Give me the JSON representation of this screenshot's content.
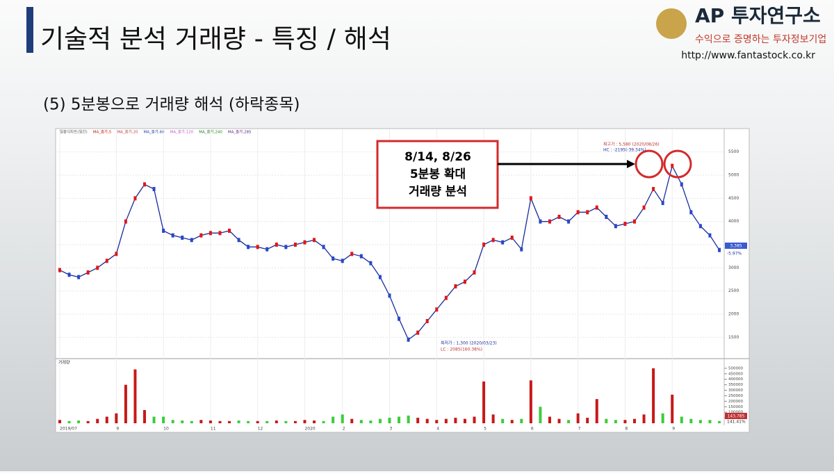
{
  "header": {
    "title": "기술적 분석 거래량 - 특징 / 해석",
    "logo": "AP 투자연구소",
    "slogan": "수익으로 증명하는 투자정보기업",
    "url": "http://www.fantastock.co.kr"
  },
  "subtitle": "(5) 5분봉으로 거래량 해석 (하락종목)",
  "callout": {
    "lines": [
      "8/14, 8/26",
      "5분봉 확대",
      "거래량 분석"
    ]
  },
  "chart_data": {
    "type": "line",
    "legend": [
      "일봉식차트(일간)",
      "MA_종가,5",
      "MA_종가,20",
      "MA_종가,60",
      "MA_종가,120",
      "MA_종가,240",
      "MA_종가,285"
    ],
    "legend_colors": [
      "#555555",
      "#d01010",
      "#c04040",
      "#2040a0",
      "#c060c0",
      "#208020",
      "#602080"
    ],
    "categories": [
      "2019/07",
      null,
      null,
      null,
      null,
      null,
      "9",
      null,
      null,
      null,
      null,
      "10",
      null,
      null,
      null,
      null,
      "11",
      null,
      null,
      null,
      null,
      "12",
      null,
      null,
      null,
      null,
      "2020",
      null,
      null,
      null,
      "2",
      null,
      null,
      null,
      null,
      "3",
      null,
      null,
      null,
      null,
      "4",
      null,
      null,
      null,
      null,
      "5",
      null,
      null,
      null,
      null,
      "6",
      null,
      null,
      null,
      null,
      "7",
      null,
      null,
      null,
      null,
      "8",
      null,
      null,
      null,
      null,
      "9",
      null,
      null,
      null,
      null,
      null
    ],
    "series": [
      {
        "color": "#1a2a9a",
        "values": [
          2950,
          2850,
          2800,
          2900,
          3000,
          3150,
          3300,
          4000,
          4500,
          4800,
          4700,
          3800,
          3700,
          3650,
          3600,
          3700,
          3750,
          3750,
          3800,
          3600,
          3450,
          3450,
          3400,
          3500,
          3450,
          3500,
          3550,
          3600,
          3450,
          3200,
          3150,
          3300,
          3250,
          3100,
          2800,
          2400,
          1900,
          1450,
          1600,
          1850,
          2100,
          2350,
          2600,
          2700,
          2900,
          3500,
          3600,
          3550,
          3650,
          3400,
          4500,
          4000,
          4000,
          4100,
          4000,
          4200,
          4200,
          4300,
          4100,
          3900,
          3950,
          4000,
          4300,
          4700,
          4400,
          5200,
          4800,
          4200,
          3900,
          3700,
          3385
        ]
      }
    ],
    "ylim": [
      1100,
      5900
    ],
    "yticks": [
      1500,
      2000,
      2500,
      3000,
      3500,
      4000,
      4500,
      5000,
      5500
    ],
    "volume_label": "거래량",
    "volume": [
      30000,
      20000,
      25000,
      20000,
      40000,
      60000,
      90000,
      350000,
      490000,
      120000,
      60000,
      60000,
      30000,
      25000,
      20000,
      30000,
      25000,
      20000,
      20000,
      25000,
      20000,
      20000,
      20000,
      25000,
      20000,
      20000,
      30000,
      25000,
      20000,
      60000,
      80000,
      40000,
      30000,
      25000,
      40000,
      50000,
      60000,
      70000,
      50000,
      40000,
      30000,
      40000,
      50000,
      40000,
      60000,
      380000,
      80000,
      40000,
      30000,
      40000,
      390000,
      150000,
      60000,
      40000,
      30000,
      90000,
      50000,
      220000,
      40000,
      30000,
      30000,
      40000,
      80000,
      500000,
      90000,
      260000,
      60000,
      40000,
      30000,
      30000,
      20000
    ],
    "volume_ylim": [
      0,
      550000
    ],
    "volume_yticks": [
      50000,
      100000,
      150000,
      200000,
      250000,
      300000,
      350000,
      400000,
      450000,
      500000
    ],
    "annotations": {
      "high": "최고가 : 5,580 (2020/08/26)",
      "hc": "HC : -2195(-39.34%)",
      "low": "최저가 : 1,300 (2020/03/23)",
      "lc": "LC : 2085(160.38%)",
      "last_price": "3,385",
      "last_change": "-5.97%",
      "last_volume": "143,785",
      "volume_change": "141.41%"
    }
  }
}
